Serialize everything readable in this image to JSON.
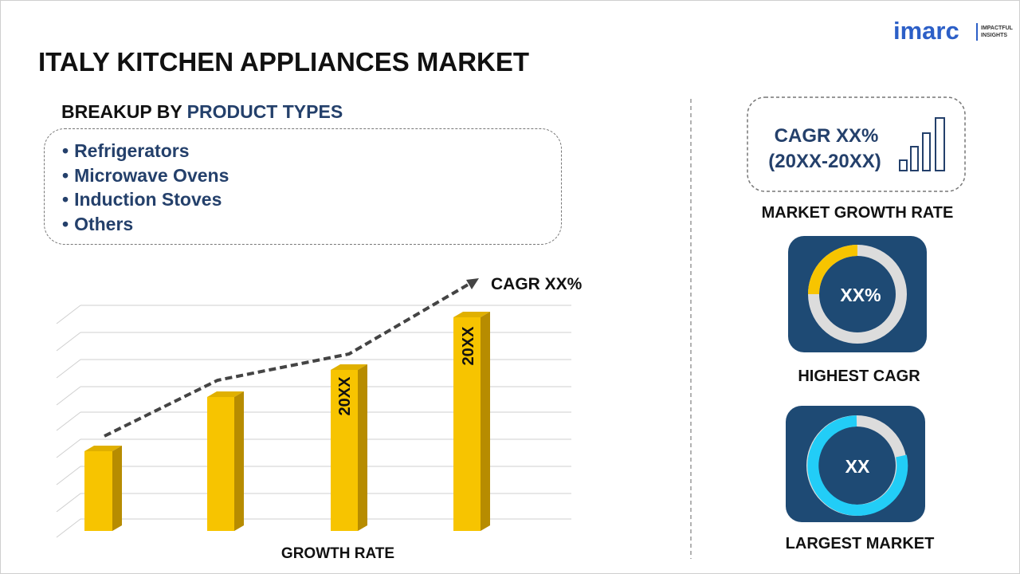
{
  "logo": {
    "name": "imarc",
    "tagline": [
      "IMPACTFUL",
      "INSIGHTS"
    ]
  },
  "header": {
    "title": "ITALY KITCHEN APPLIANCES MARKET"
  },
  "breakup": {
    "heading_prefix": "BREAKUP BY",
    "heading_highlight": "PRODUCT TYPES",
    "items": [
      "Refrigerators",
      "Microwave Ovens",
      "Induction Stoves",
      "Others"
    ]
  },
  "growth_chart": {
    "annotation": "CAGR XX%",
    "bar_labels": [
      "20XX",
      "20XX"
    ],
    "axis_label": "GROWTH RATE"
  },
  "cards": [
    {
      "lines": [
        "CAGR XX%",
        "(20XX-20XX)"
      ],
      "label": "MARKET GROWTH RATE"
    },
    {
      "value": "XX%",
      "label": "HIGHEST CAGR"
    },
    {
      "value": "XX",
      "label": "LARGEST MARKET"
    }
  ]
}
